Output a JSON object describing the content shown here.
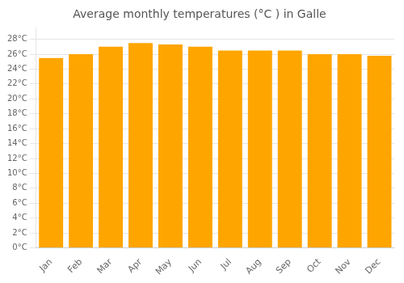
{
  "chart_data": {
    "type": "bar",
    "title": "Average monthly temperatures (°C ) in Galle",
    "categories": [
      "Jan",
      "Feb",
      "Mar",
      "Apr",
      "May",
      "Jun",
      "Jul",
      "Aug",
      "Sep",
      "Oct",
      "Nov",
      "Dec"
    ],
    "values": [
      25.5,
      26.0,
      27.0,
      27.5,
      27.3,
      27.0,
      26.5,
      26.5,
      26.5,
      26.0,
      26.0,
      25.8
    ],
    "color": "#FFA500",
    "ylim": [
      0,
      29.5
    ],
    "yticks": [
      {
        "value": 0,
        "label": "0°C"
      },
      {
        "value": 2,
        "label": "2°C"
      },
      {
        "value": 4,
        "label": "4°C"
      },
      {
        "value": 6,
        "label": "6°C"
      },
      {
        "value": 8,
        "label": "8°C"
      },
      {
        "value": 10,
        "label": "10°C"
      },
      {
        "value": 12,
        "label": "12°C"
      },
      {
        "value": 14,
        "label": "14°C"
      },
      {
        "value": 16,
        "label": "16°C"
      },
      {
        "value": 18,
        "label": "18°C"
      },
      {
        "value": 20,
        "label": "20°C"
      },
      {
        "value": 22,
        "label": "22°C"
      },
      {
        "value": 24,
        "label": "24°C"
      },
      {
        "value": 26,
        "label": "26°C"
      },
      {
        "value": 28,
        "label": "28°C"
      }
    ],
    "grid": true
  }
}
